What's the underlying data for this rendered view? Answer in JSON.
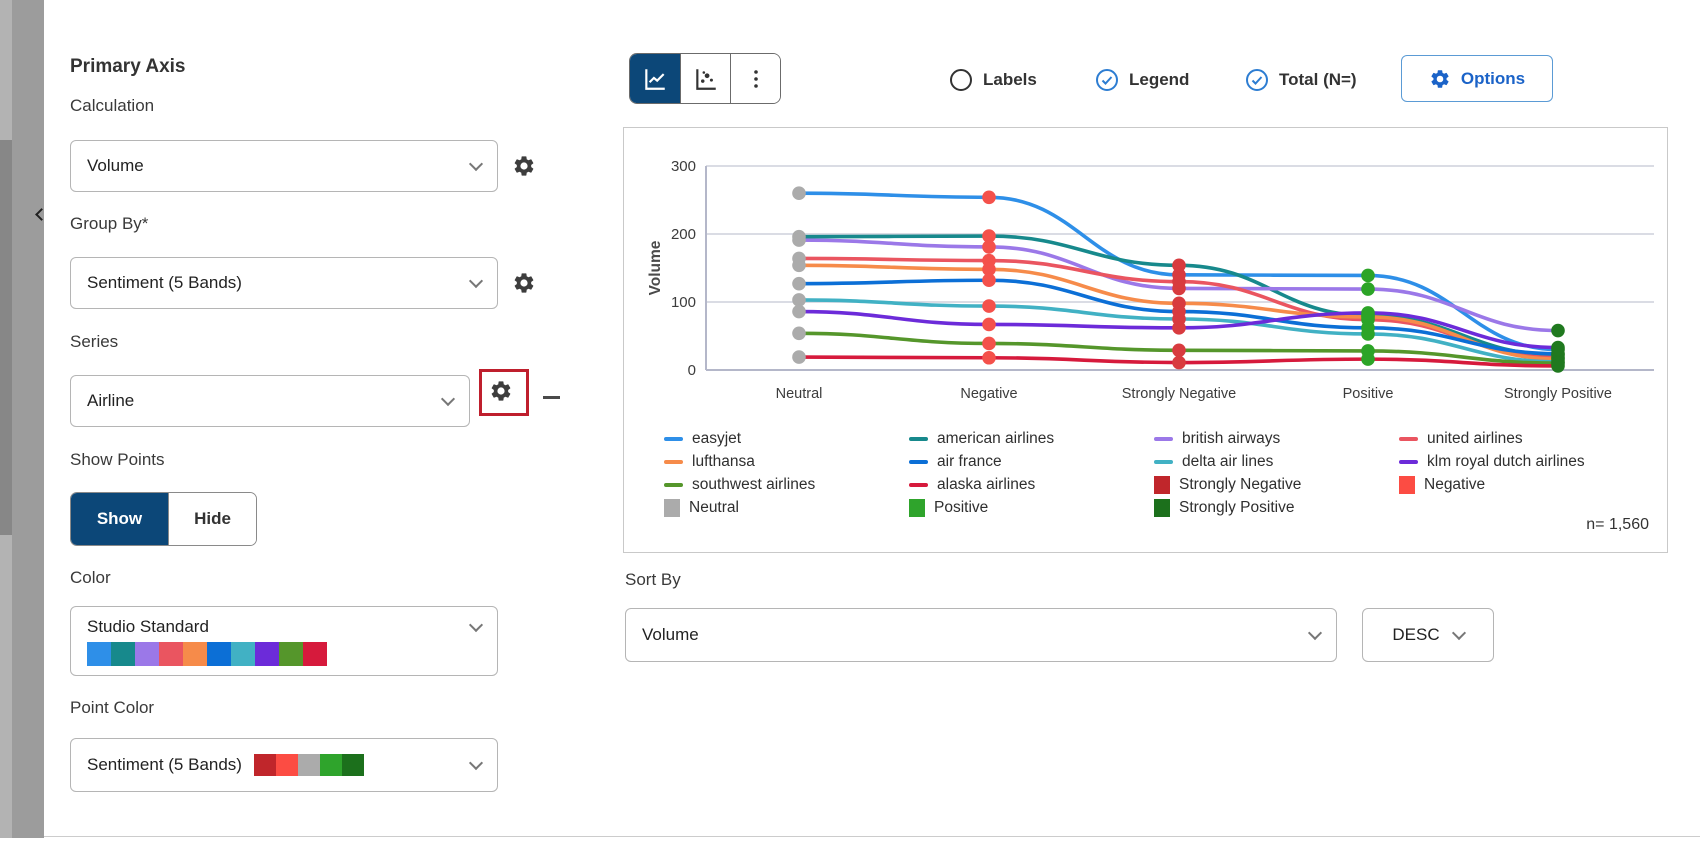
{
  "sidebar": {
    "title": "Primary Axis",
    "fields": [
      {
        "label": "Calculation",
        "value": "Volume"
      },
      {
        "label": "Group By*",
        "value": "Sentiment (5 Bands)"
      },
      {
        "label": "Series",
        "value": "Airline"
      }
    ],
    "show_points": {
      "label": "Show Points",
      "show_label": "Show",
      "hide_label": "Hide",
      "selected": "Show"
    },
    "color": {
      "label": "Color",
      "value": "Studio Standard",
      "swatches": [
        "#2E8FE8",
        "#17898C",
        "#9B78E8",
        "#EA5560",
        "#F68B4A",
        "#0C6FD6",
        "#41B1C4",
        "#6C2BD9",
        "#55962B",
        "#D61A3C"
      ]
    },
    "point_color": {
      "label": "Point Color",
      "value": "Sentiment (5 Bands)",
      "swatches": [
        "#C0262B",
        "#FC4C43",
        "#ABABAB",
        "#2FA42C",
        "#1C701C"
      ]
    }
  },
  "toolbar": {
    "labels": "Labels",
    "legend": "Legend",
    "total": "Total (N=)",
    "options": "Options",
    "labels_checked": false,
    "legend_checked": true,
    "total_checked": true,
    "accent_blue": "#2d7dd2",
    "active_navy": "#0c4778"
  },
  "chart_data": {
    "type": "line",
    "title": "",
    "xlabel": "",
    "ylabel": "Volume",
    "ylim": [
      0,
      300
    ],
    "yticks": [
      0,
      100,
      200,
      300
    ],
    "grid": true,
    "legend_position": "bottom",
    "categories": [
      "Neutral",
      "Negative",
      "Strongly Negative",
      "Positive",
      "Strongly Positive"
    ],
    "series": [
      {
        "name": "easyjet",
        "color": "#2E8FE8",
        "values": [
          260,
          254,
          140,
          139,
          30
        ]
      },
      {
        "name": "american airlines",
        "color": "#17898C",
        "values": [
          196,
          197,
          154,
          80,
          22
        ]
      },
      {
        "name": "british airways",
        "color": "#9B78E8",
        "values": [
          191,
          181,
          120,
          119,
          58
        ]
      },
      {
        "name": "united airlines",
        "color": "#EA5560",
        "values": [
          164,
          161,
          130,
          74,
          18
        ]
      },
      {
        "name": "lufthansa",
        "color": "#F68B4A",
        "values": [
          154,
          148,
          98,
          78,
          16
        ]
      },
      {
        "name": "air france",
        "color": "#0C6FD6",
        "values": [
          127,
          132,
          86,
          62,
          24
        ]
      },
      {
        "name": "delta air lines",
        "color": "#41B1C4",
        "values": [
          103,
          94,
          75,
          53,
          12
        ]
      },
      {
        "name": "klm royal dutch airlines",
        "color": "#6C2BD9",
        "values": [
          86,
          67,
          62,
          84,
          33
        ]
      },
      {
        "name": "southwest airlines",
        "color": "#55962B",
        "values": [
          54,
          39,
          29,
          28,
          10
        ]
      },
      {
        "name": "alaska airlines",
        "color": "#D61A3C",
        "values": [
          19,
          18,
          11,
          16,
          6
        ]
      }
    ],
    "point_colors_by_category": [
      "#ABABAB",
      "#F4514B",
      "#D83B3F",
      "#2CA427",
      "#20791F"
    ],
    "sentiment_legend": [
      {
        "label": "Strongly Negative",
        "color": "#C0262B"
      },
      {
        "label": "Negative",
        "color": "#FC4C43"
      },
      {
        "label": "Neutral",
        "color": "#ABABAB"
      },
      {
        "label": "Positive",
        "color": "#2FA42C"
      },
      {
        "label": "Strongly Positive",
        "color": "#1C701C"
      }
    ],
    "sample_size": "n= 1,560"
  },
  "sort": {
    "label": "Sort By",
    "field": "Volume",
    "direction": "DESC"
  }
}
